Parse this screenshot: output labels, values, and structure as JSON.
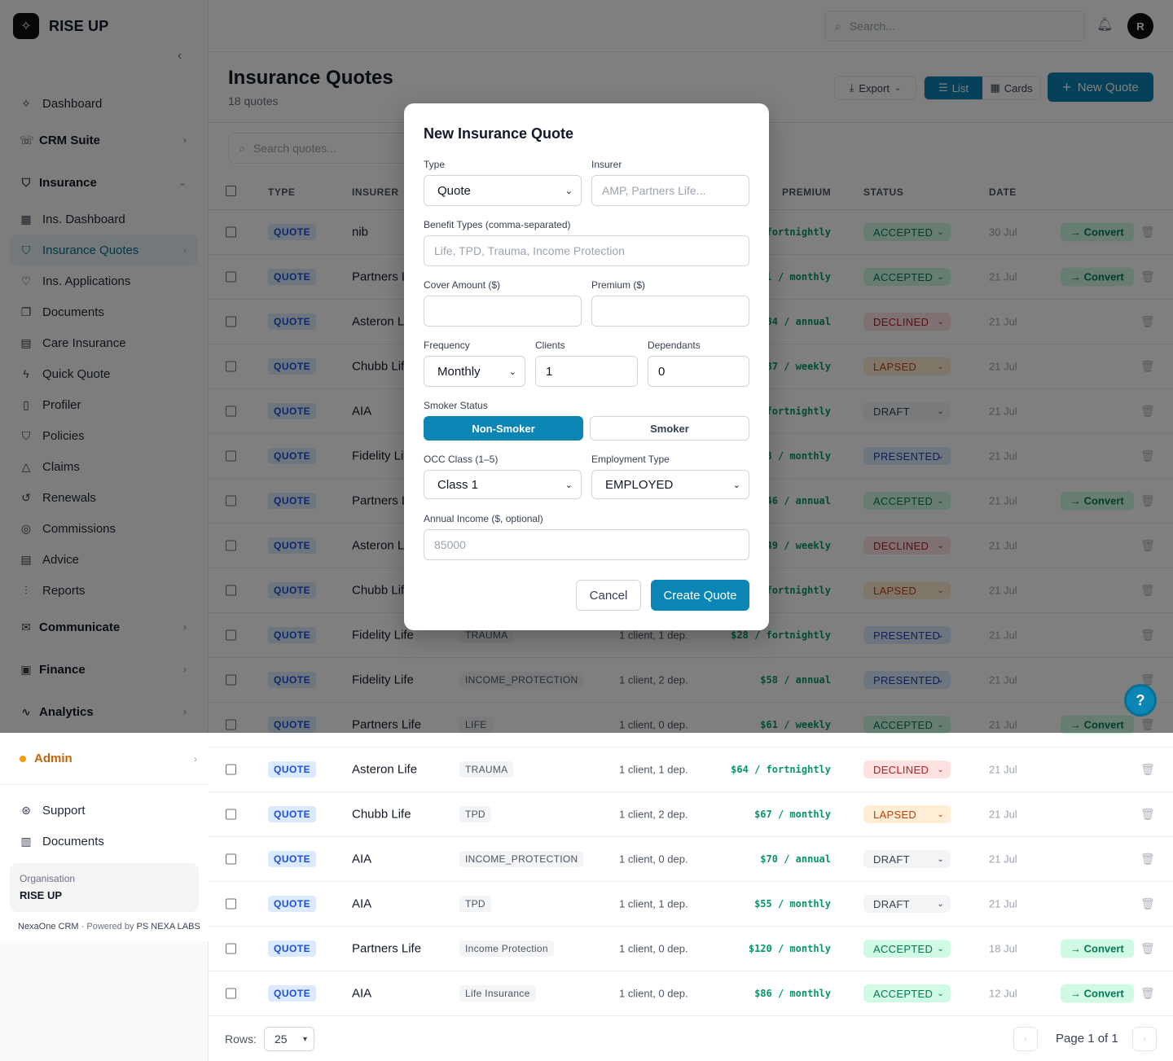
{
  "brand": {
    "name": "RISE UP"
  },
  "sidebar": {
    "items": [
      {
        "type": "item",
        "label": "Dashboard",
        "icon": "sparkle-icon",
        "glyph": "✧"
      },
      {
        "type": "group",
        "label": "CRM Suite",
        "icon": "phone-icon",
        "glyph": "☏",
        "chev": "›"
      },
      {
        "type": "group",
        "label": "Insurance",
        "icon": "shield-icon",
        "glyph": "⛉",
        "chev": "⌄"
      },
      {
        "type": "item",
        "label": "Ins. Dashboard",
        "icon": "grid-icon",
        "glyph": "▦"
      },
      {
        "type": "item",
        "label": "Insurance Quotes",
        "icon": "shield-icon",
        "glyph": "⛉",
        "active": true,
        "chev": "›"
      },
      {
        "type": "item",
        "label": "Ins. Applications",
        "icon": "heart-icon",
        "glyph": "♡"
      },
      {
        "type": "item",
        "label": "Documents",
        "icon": "files-icon",
        "glyph": "❐"
      },
      {
        "type": "item",
        "label": "Care Insurance",
        "icon": "clipboard-icon",
        "glyph": "▤"
      },
      {
        "type": "item",
        "label": "Quick Quote",
        "icon": "bolt-icon",
        "glyph": "ϟ"
      },
      {
        "type": "item",
        "label": "Profiler",
        "icon": "file-icon",
        "glyph": "▯"
      },
      {
        "type": "item",
        "label": "Policies",
        "icon": "shield-icon",
        "glyph": "⛉"
      },
      {
        "type": "item",
        "label": "Claims",
        "icon": "warning-icon",
        "glyph": "△"
      },
      {
        "type": "item",
        "label": "Renewals",
        "icon": "refresh-icon",
        "glyph": "↺"
      },
      {
        "type": "item",
        "label": "Commissions",
        "icon": "coins-icon",
        "glyph": "◎"
      },
      {
        "type": "item",
        "label": "Advice",
        "icon": "document-icon",
        "glyph": "▤"
      },
      {
        "type": "item",
        "label": "Reports",
        "icon": "bar-chart-icon",
        "glyph": "⫶"
      },
      {
        "type": "group",
        "label": "Communicate",
        "icon": "mail-icon",
        "glyph": "✉",
        "chev": "›"
      },
      {
        "type": "group",
        "label": "Finance",
        "icon": "ledger-icon",
        "glyph": "▣",
        "chev": "›"
      },
      {
        "type": "group",
        "label": "Analytics",
        "icon": "activity-icon",
        "glyph": "∿",
        "chev": "›"
      }
    ],
    "admin_label": "Admin",
    "admin_chev": "›",
    "bottom_links": [
      {
        "label": "Support",
        "icon": "lifebuoy-icon",
        "glyph": "⊛"
      },
      {
        "label": "Documents",
        "icon": "book-icon",
        "glyph": "▥"
      }
    ],
    "org_label": "Organisation",
    "org_name": "RISE UP",
    "powered_app": "NexaOne CRM",
    "powered_sep": "·",
    "powered_by": "Powered by",
    "powered_company": "PS NEXA LABS"
  },
  "header": {
    "search_placeholder": "Search...",
    "avatar_initial": "R"
  },
  "page": {
    "title": "Insurance Quotes",
    "count": "18 quotes",
    "export_label": "Export",
    "view_list": "List",
    "view_cards": "Cards",
    "new_quote": "New Quote",
    "search_placeholder": "Search quotes..."
  },
  "table": {
    "headers": {
      "type": "TYPE",
      "insurer": "INSURER",
      "premium": "PREMIUM",
      "status": "STATUS",
      "date": "DATE"
    },
    "convert_label": "Convert",
    "rows": [
      {
        "type": "QUOTE",
        "insurer": "nib",
        "benefit": "",
        "parties": "",
        "premium": "fortnightly",
        "status": "ACCEPTED",
        "date": "30 Jul",
        "convert": true
      },
      {
        "type": "QUOTE",
        "insurer": "Partners Life",
        "benefit": "",
        "parties": "",
        "premium": "l / monthly",
        "status": "ACCEPTED",
        "date": "21 Jul",
        "convert": true
      },
      {
        "type": "QUOTE",
        "insurer": "Asteron Life",
        "benefit": "",
        "parties": "",
        "premium": "34 / annual",
        "status": "DECLINED",
        "date": "21 Jul",
        "convert": false
      },
      {
        "type": "QUOTE",
        "insurer": "Chubb Life",
        "benefit": "",
        "parties": "",
        "premium": "37 / weekly",
        "status": "LAPSED",
        "date": "21 Jul",
        "convert": false
      },
      {
        "type": "QUOTE",
        "insurer": "AIA",
        "benefit": "",
        "parties": "",
        "premium": "fortnightly",
        "status": "DRAFT",
        "date": "21 Jul",
        "convert": false
      },
      {
        "type": "QUOTE",
        "insurer": "Fidelity Life",
        "benefit": "",
        "parties": "",
        "premium": "3 / monthly",
        "status": "PRESENTED",
        "date": "21 Jul",
        "convert": false
      },
      {
        "type": "QUOTE",
        "insurer": "Partners Life",
        "benefit": "",
        "parties": "",
        "premium": "46 / annual",
        "status": "ACCEPTED",
        "date": "21 Jul",
        "convert": true
      },
      {
        "type": "QUOTE",
        "insurer": "Asteron Life",
        "benefit": "",
        "parties": "",
        "premium": "49 / weekly",
        "status": "DECLINED",
        "date": "21 Jul",
        "convert": false
      },
      {
        "type": "QUOTE",
        "insurer": "Chubb Life",
        "benefit": "",
        "parties": "",
        "premium": "fortnightly",
        "status": "LAPSED",
        "date": "21 Jul",
        "convert": false
      },
      {
        "type": "QUOTE",
        "insurer": "Fidelity Life",
        "benefit": "TRAUMA",
        "parties": "1 client, 1 dep.",
        "premium": "$28 / fortnightly",
        "status": "PRESENTED",
        "date": "21 Jul",
        "convert": false
      },
      {
        "type": "QUOTE",
        "insurer": "Fidelity Life",
        "benefit": "INCOME_PROTECTION",
        "parties": "1 client, 2 dep.",
        "premium": "$58 / annual",
        "status": "PRESENTED",
        "date": "21 Jul",
        "convert": false
      },
      {
        "type": "QUOTE",
        "insurer": "Partners Life",
        "benefit": "LIFE",
        "parties": "1 client, 0 dep.",
        "premium": "$61 / weekly",
        "status": "ACCEPTED",
        "date": "21 Jul",
        "convert": true
      },
      {
        "type": "QUOTE",
        "insurer": "Asteron Life",
        "benefit": "TRAUMA",
        "parties": "1 client, 1 dep.",
        "premium": "$64 / fortnightly",
        "status": "DECLINED",
        "date": "21 Jul",
        "convert": false
      },
      {
        "type": "QUOTE",
        "insurer": "Chubb Life",
        "benefit": "TPD",
        "parties": "1 client, 2 dep.",
        "premium": "$67 / monthly",
        "status": "LAPSED",
        "date": "21 Jul",
        "convert": false
      },
      {
        "type": "QUOTE",
        "insurer": "AIA",
        "benefit": "INCOME_PROTECTION",
        "parties": "1 client, 0 dep.",
        "premium": "$70 / annual",
        "status": "DRAFT",
        "date": "21 Jul",
        "convert": false
      },
      {
        "type": "QUOTE",
        "insurer": "AIA",
        "benefit": "TPD",
        "parties": "1 client, 1 dep.",
        "premium": "$55 / monthly",
        "status": "DRAFT",
        "date": "21 Jul",
        "convert": false
      },
      {
        "type": "QUOTE",
        "insurer": "Partners Life",
        "benefit": "Income Protection",
        "parties": "1 client, 0 dep.",
        "premium": "$120 / monthly",
        "status": "ACCEPTED",
        "date": "18 Jul",
        "convert": true
      },
      {
        "type": "QUOTE",
        "insurer": "AIA",
        "benefit": "Life Insurance",
        "parties": "1 client, 0 dep.",
        "premium": "$86 / monthly",
        "status": "ACCEPTED",
        "date": "12 Jul",
        "convert": true
      }
    ]
  },
  "pagination": {
    "rows_label": "Rows:",
    "rows_value": "25",
    "page_text": "Page 1 of 1"
  },
  "modal": {
    "title": "New Insurance Quote",
    "type_label": "Type",
    "type_value": "Quote",
    "insurer_label": "Insurer",
    "insurer_placeholder": "AMP, Partners Life...",
    "benefit_label": "Benefit Types (comma-separated)",
    "benefit_placeholder": "Life, TPD, Trauma, Income Protection",
    "cover_label": "Cover Amount ($)",
    "cover_value": "",
    "premium_label": "Premium ($)",
    "premium_value": "",
    "frequency_label": "Frequency",
    "frequency_value": "Monthly",
    "clients_label": "Clients",
    "clients_value": "1",
    "dependants_label": "Dependants",
    "dependants_value": "0",
    "smoker_label": "Smoker Status",
    "non_smoker": "Non-Smoker",
    "smoker": "Smoker",
    "occ_label": "OCC Class (1–5)",
    "occ_value": "Class 1",
    "employment_label": "Employment Type",
    "employment_value": "EMPLOYED",
    "income_label": "Annual Income ($, optional)",
    "income_placeholder": "85000",
    "cancel": "Cancel",
    "create": "Create Quote"
  },
  "colors": {
    "accent": "#0b85b3",
    "success": "#047857",
    "danger": "#b91c1c",
    "warning": "#c2410c"
  }
}
